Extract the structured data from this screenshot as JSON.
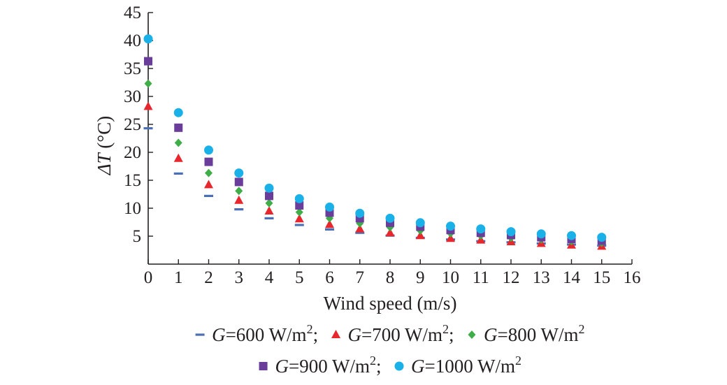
{
  "chart_data": {
    "type": "scatter",
    "xlabel": "Wind speed (m/s)",
    "ylabel_symbol": "ΔT",
    "ylabel_unit": "(°C)",
    "xlim": [
      0,
      16
    ],
    "ylim": [
      0,
      45
    ],
    "x_ticks": [
      0,
      1,
      2,
      3,
      4,
      5,
      6,
      7,
      8,
      9,
      10,
      11,
      12,
      13,
      14,
      15,
      16
    ],
    "y_ticks": [
      5,
      10,
      15,
      20,
      25,
      30,
      35,
      40,
      45
    ],
    "grid": false,
    "legend_position": "bottom",
    "x": [
      0,
      1,
      2,
      3,
      4,
      5,
      6,
      7,
      8,
      9,
      10,
      11,
      12,
      13,
      14,
      15
    ],
    "series": [
      {
        "name": "G=600 W/m²",
        "legend_var": "G",
        "legend_rest": "=600 W/m",
        "legend_sup": "2",
        "legend_sep": ";",
        "marker": "dash",
        "color": "#4a6fb5",
        "values": [
          24.3,
          16.2,
          12.2,
          9.8,
          8.2,
          7.0,
          6.2,
          5.6,
          5.1,
          4.7,
          4.4,
          4.1,
          3.9,
          3.7,
          3.5,
          3.3
        ]
      },
      {
        "name": "G=700 W/m²",
        "legend_var": "G",
        "legend_rest": "=700 W/m",
        "legend_sup": "2",
        "legend_sep": ";",
        "marker": "triangle",
        "color": "#e8262d",
        "values": [
          28.2,
          18.9,
          14.2,
          11.4,
          9.5,
          8.1,
          7.1,
          6.3,
          5.6,
          5.1,
          4.6,
          4.3,
          4.0,
          3.7,
          3.4,
          3.2
        ]
      },
      {
        "name": "G=800 W/m²",
        "legend_var": "G",
        "legend_rest": "=800 W/m",
        "legend_sup": "2",
        "legend_sep": "",
        "marker": "diamond",
        "color": "#3fae49",
        "values": [
          32.3,
          21.7,
          16.3,
          13.1,
          10.9,
          9.3,
          8.2,
          7.3,
          6.6,
          6.0,
          5.5,
          5.1,
          4.7,
          4.4,
          4.1,
          3.8
        ]
      },
      {
        "name": "G=900 W/m²",
        "legend_var": "G",
        "legend_rest": "=900 W/m",
        "legend_sup": "2",
        "legend_sep": ";",
        "marker": "square",
        "color": "#6a3d9a",
        "values": [
          36.3,
          24.4,
          18.3,
          14.7,
          12.2,
          10.5,
          9.2,
          8.2,
          7.4,
          6.7,
          6.1,
          5.6,
          5.2,
          4.8,
          4.5,
          4.2
        ]
      },
      {
        "name": "G=1000 W/m²",
        "legend_var": "G",
        "legend_rest": "=1000 W/m",
        "legend_sup": "2",
        "legend_sep": "",
        "marker": "circle",
        "color": "#1ab0e8",
        "values": [
          40.3,
          27.1,
          20.4,
          16.3,
          13.6,
          11.7,
          10.2,
          9.1,
          8.2,
          7.4,
          6.8,
          6.3,
          5.8,
          5.4,
          5.1,
          4.8
        ]
      }
    ]
  }
}
